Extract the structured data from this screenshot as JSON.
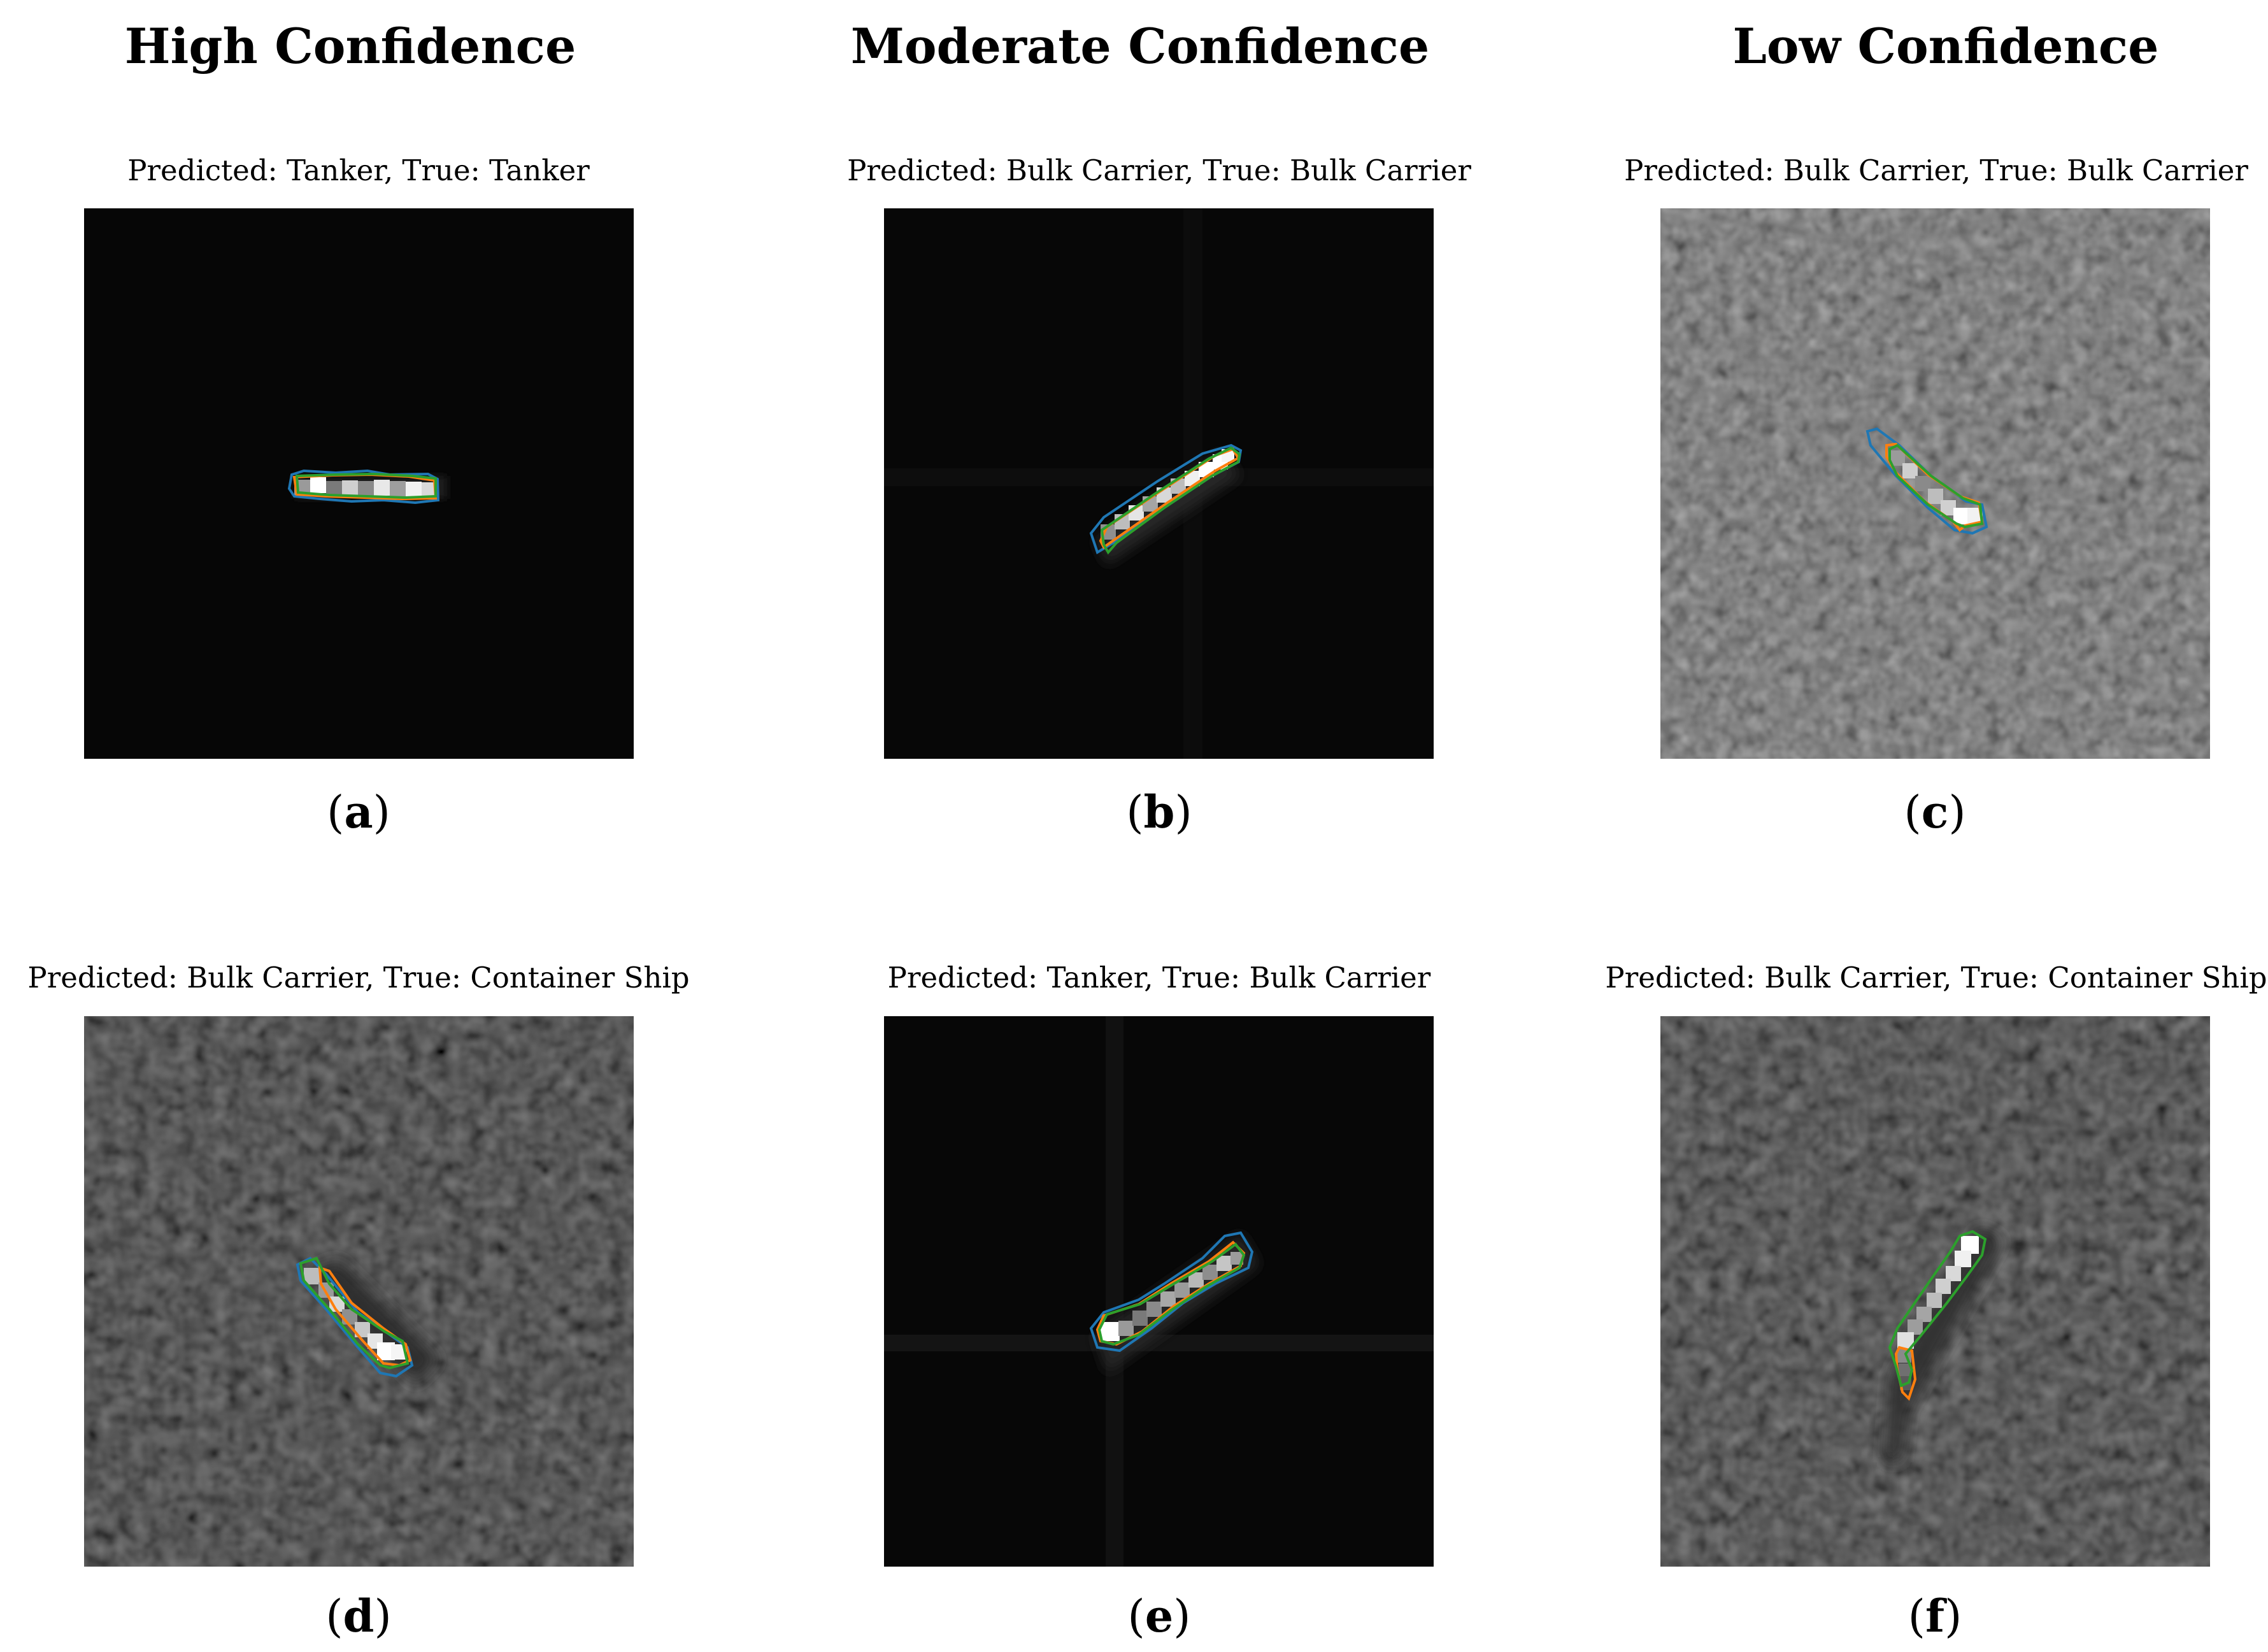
{
  "figure": {
    "columns": [
      {
        "label": "High Confidence"
      },
      {
        "label": "Moderate Confidence"
      },
      {
        "label": "Low Confidence"
      }
    ],
    "panels": [
      {
        "id": "a",
        "title": "Predicted: Tanker, True: Tanker",
        "label_open": "(",
        "label_letter": "a",
        "label_close": ")"
      },
      {
        "id": "b",
        "title": "Predicted: Bulk Carrier, True: Bulk Carrier",
        "label_open": "(",
        "label_letter": "b",
        "label_close": ")"
      },
      {
        "id": "c",
        "title": "Predicted: Bulk Carrier, True: Bulk Carrier",
        "label_open": "(",
        "label_letter": "c",
        "label_close": ")"
      },
      {
        "id": "d",
        "title": "Predicted: Bulk Carrier, True: Container Ship",
        "label_open": "(",
        "label_letter": "d",
        "label_close": ")"
      },
      {
        "id": "e",
        "title": "Predicted: Tanker, True: Bulk Carrier",
        "label_open": "(",
        "label_letter": "e",
        "label_close": ")"
      },
      {
        "id": "f",
        "title": "Predicted: Bulk Carrier, True: Container Ship",
        "label_open": "(",
        "label_letter": "f",
        "label_close": ")"
      }
    ],
    "contour_colors": {
      "blue": "#1f77b4",
      "orange": "#ff7f0e",
      "green": "#2ca02c"
    },
    "image_background": "#050505"
  }
}
